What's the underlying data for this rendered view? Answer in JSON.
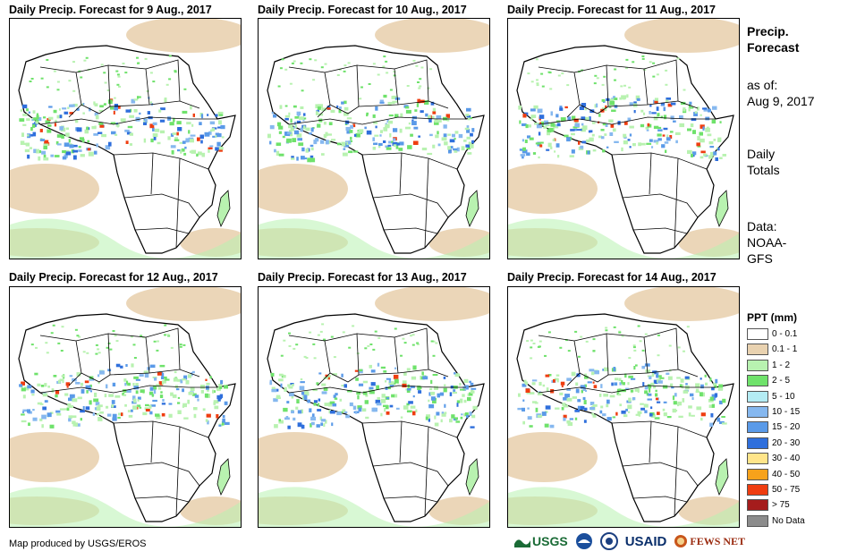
{
  "panels": [
    {
      "title": "Daily Precip. Forecast for 9 Aug., 2017"
    },
    {
      "title": "Daily Precip. Forecast for 10 Aug., 2017"
    },
    {
      "title": "Daily Precip. Forecast for 11 Aug., 2017"
    },
    {
      "title": "Daily Precip. Forecast for 12 Aug., 2017"
    },
    {
      "title": "Daily Precip. Forecast for 13 Aug., 2017"
    },
    {
      "title": "Daily Precip. Forecast for 14 Aug., 2017"
    }
  ],
  "sidebar": {
    "heading_line1": "Precip.",
    "heading_line2": "Forecast",
    "asof_line1": "as of:",
    "asof_line2": "Aug 9, 2017",
    "totals_line1": "Daily",
    "totals_line2": "Totals",
    "data_line1": "Data:",
    "data_line2": "NOAA-",
    "data_line3": "GFS"
  },
  "legend": {
    "title": "PPT (mm)",
    "items": [
      {
        "label": "0 - 0.1",
        "color": "#ffffff"
      },
      {
        "label": "0.1 - 1",
        "color": "#e9d2b0"
      },
      {
        "label": "1 - 2",
        "color": "#b8f2b0"
      },
      {
        "label": "2 - 5",
        "color": "#6fe26b"
      },
      {
        "label": "5 - 10",
        "color": "#b4ecf4"
      },
      {
        "label": "10 - 15",
        "color": "#86b8ef"
      },
      {
        "label": "15 - 20",
        "color": "#5a9ae8"
      },
      {
        "label": "20 - 30",
        "color": "#2f6fdc"
      },
      {
        "label": "30 - 40",
        "color": "#ffe58a"
      },
      {
        "label": "40 - 50",
        "color": "#f7a21b"
      },
      {
        "label": "50 - 75",
        "color": "#ef3d10"
      },
      {
        "label": "> 75",
        "color": "#a51c1c"
      },
      {
        "label": "No Data",
        "color": "#8c8c8c"
      }
    ]
  },
  "footer": {
    "credit": "Map produced by USGS/EROS",
    "logo_usgs": "USGS",
    "logo_usaid": "USAID",
    "logo_fews": "FEWS NET"
  }
}
